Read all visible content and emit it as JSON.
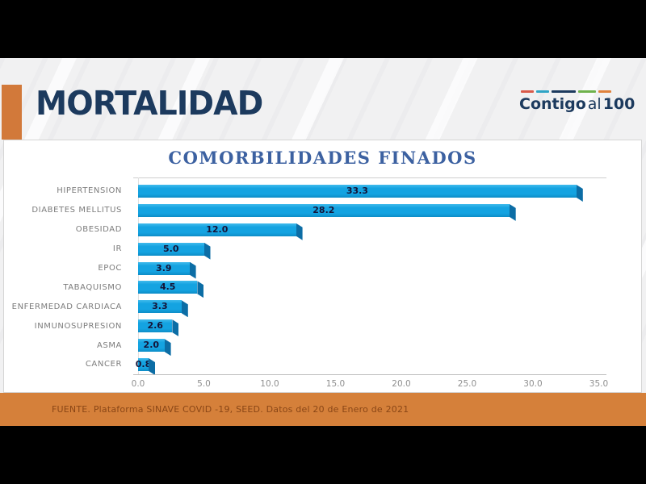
{
  "header": {
    "title": "MORTALIDAD",
    "logo": {
      "part_bold1": "Contigo",
      "part_light": "al",
      "part_bold2": "100"
    }
  },
  "chart_data": {
    "type": "bar",
    "orientation": "horizontal",
    "title": "COMORBILIDADES FINADOS",
    "categories": [
      "HIPERTENSION",
      "DIABETES MELLITUS",
      "OBESIDAD",
      "IR",
      "EPOC",
      "TABAQUISMO",
      "ENFERMEDAD CARDIACA",
      "INMUNOSUPRESION",
      "ASMA",
      "CANCER"
    ],
    "values": [
      33.3,
      28.2,
      12.0,
      5.0,
      3.9,
      4.5,
      3.3,
      2.6,
      2.0,
      0.8
    ],
    "value_labels": [
      "33.3",
      "28.2",
      "12.0",
      "5.0",
      "3.9",
      "4.5",
      "3.3",
      "2.6",
      "2.0",
      "0.8"
    ],
    "xlim": [
      0,
      35
    ],
    "x_ticks": [
      "0.0",
      "5.0",
      "10.0",
      "15.0",
      "20.0",
      "25.0",
      "30.0",
      "35.0"
    ],
    "grid": false,
    "legend": "none",
    "bar_color": "#14a3e1",
    "bar_side_color": "#0c6da5",
    "value_label_color": "#141438"
  },
  "footer": {
    "source": "FUENTE. Plataforma SINAVE COVID -19, SEED. Datos del 20 de Enero de 2021"
  },
  "colors": {
    "accent_orange": "#d2793a",
    "footer_orange": "#d5803a",
    "title_navy": "#1c3a5e",
    "chart_title_blue": "#3c61a1",
    "letterbox_black": "#000000"
  }
}
